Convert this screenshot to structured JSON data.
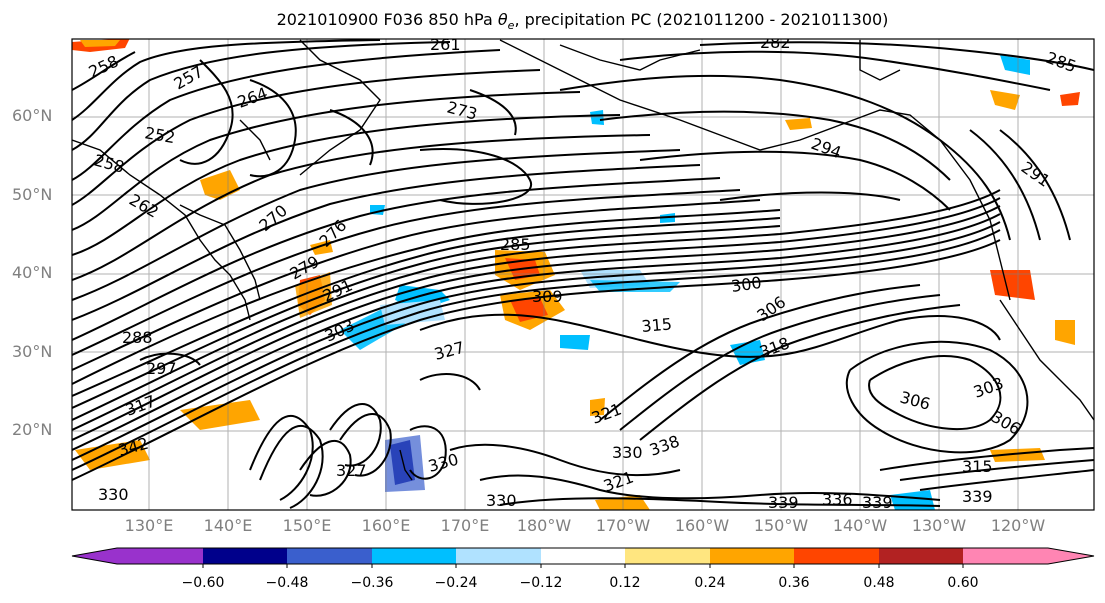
{
  "title_prefix": "2021010900 F036 850 hPa ",
  "title_symbol": "θ",
  "title_subscript": "e",
  "title_suffix": ", precipitation PC (2021011200 - 2021011300)",
  "lat_labels": [
    "60°N",
    "50°N",
    "40°N",
    "30°N",
    "20°N"
  ],
  "lon_labels": [
    "130°E",
    "140°E",
    "150°E",
    "160°E",
    "170°E",
    "180°W",
    "170°W",
    "160°W",
    "150°W",
    "140°W",
    "130°W",
    "120°W"
  ],
  "contour_labels": [
    "258",
    "257",
    "261",
    "282",
    "285",
    "264",
    "273",
    "252",
    "258",
    "294",
    "291",
    "270",
    "276",
    "285",
    "262",
    "279",
    "309",
    "300",
    "291",
    "306",
    "315",
    "303",
    "288",
    "297",
    "327",
    "318",
    "306",
    "303",
    "317",
    "321",
    "306",
    "315",
    "330",
    "327",
    "330",
    "321",
    "338",
    "330",
    "339",
    "336",
    "339",
    "339",
    "342",
    "330"
  ],
  "colorbar": {
    "ticks": [
      "−0.60",
      "−0.48",
      "−0.36",
      "−0.24",
      "−0.12",
      "0.12",
      "0.24",
      "0.36",
      "0.48",
      "0.60"
    ],
    "colors": [
      "#9932cc",
      "#00008b",
      "#3a5fcd",
      "#00bfff",
      "#b0e2ff",
      "#ffffff",
      "#ffe680",
      "#ffa500",
      "#ff4500",
      "#b22222",
      "#ff85b3"
    ]
  }
}
